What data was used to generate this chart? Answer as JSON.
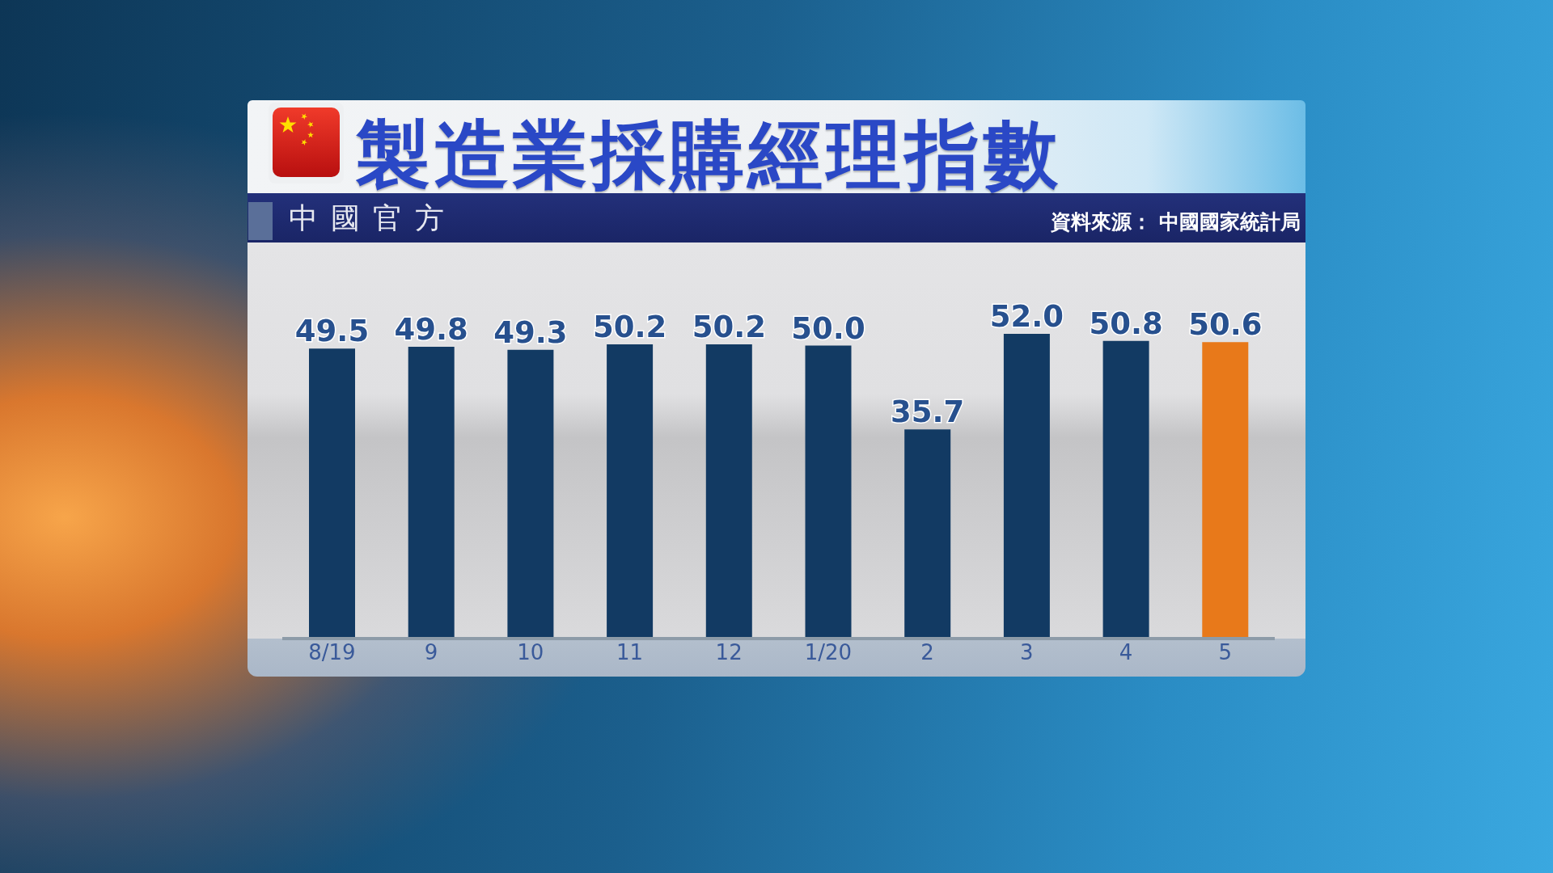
{
  "chart_data": {
    "type": "bar",
    "title": "製造業採購經理指數",
    "subtitle": "中國官方",
    "annotations": [
      "資料來源： 中國國家統計局"
    ],
    "categories": [
      "8/19",
      "9",
      "10",
      "11",
      "12",
      "1/20",
      "2",
      "3",
      "4",
      "5"
    ],
    "values": [
      49.5,
      49.8,
      49.3,
      50.2,
      50.2,
      50.0,
      35.7,
      52.0,
      50.8,
      50.6
    ],
    "colors": [
      "#123a63",
      "#123a63",
      "#123a63",
      "#123a63",
      "#123a63",
      "#123a63",
      "#123a63",
      "#123a63",
      "#123a63",
      "#e8791a"
    ],
    "value_labels": [
      "49.5",
      "49.8",
      "49.3",
      "50.2",
      "50.2",
      "50.0",
      "35.7",
      "52.0",
      "50.8",
      "50.6"
    ],
    "tick_labels": "x"
  }
}
